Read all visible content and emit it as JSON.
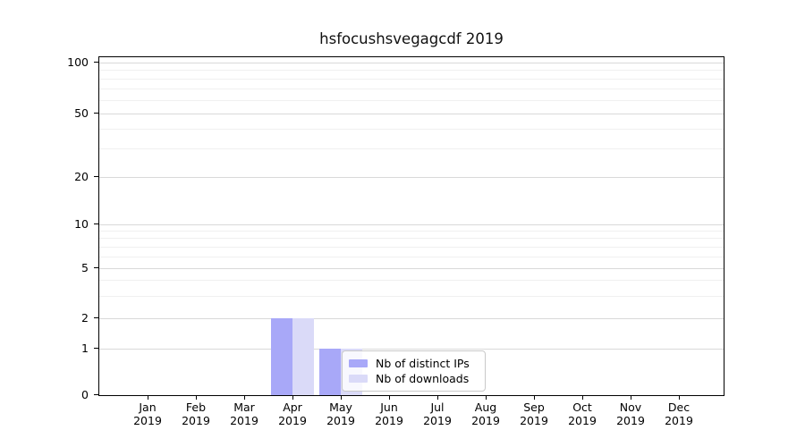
{
  "chart_data": {
    "type": "bar",
    "title": "hsfocushsvegagcdf 2019",
    "categories": [
      "Jan 2019",
      "Feb 2019",
      "Mar 2019",
      "Apr 2019",
      "May 2019",
      "Jun 2019",
      "Jul 2019",
      "Aug 2019",
      "Sep 2019",
      "Oct 2019",
      "Nov 2019",
      "Dec 2019"
    ],
    "series": [
      {
        "name": "Nb of distinct IPs",
        "color": "#a8a8f8",
        "values": [
          0,
          0,
          0,
          2,
          1,
          0,
          0,
          0,
          0,
          0,
          0,
          0
        ]
      },
      {
        "name": "Nb of downloads",
        "color": "#dadaf8",
        "values": [
          0,
          0,
          0,
          2,
          1,
          0,
          0,
          0,
          0,
          0,
          0,
          0
        ]
      }
    ],
    "y_axis": {
      "scale": "log-like (symlog)",
      "ticks": [
        0,
        1,
        2,
        5,
        10,
        20,
        50,
        100
      ],
      "minor_gridlines": [
        3,
        4,
        6,
        7,
        8,
        9,
        30,
        40,
        60,
        70,
        80,
        90
      ],
      "ylim": [
        0,
        110
      ]
    },
    "legend": {
      "position": "lower center, inside plot, overlapping May bars"
    },
    "grid": "horizontal major and minor gridlines",
    "colors": {
      "grid_major": "#d9d9d9",
      "grid_minor": "#f0f0f0",
      "axis": "#000000",
      "text": "#000000",
      "legend_border": "#c9c9c9"
    }
  }
}
